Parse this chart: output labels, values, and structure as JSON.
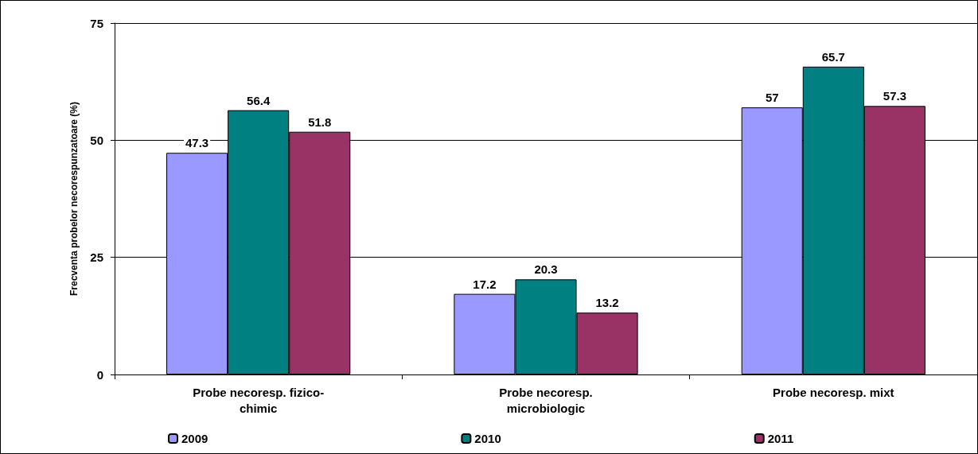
{
  "chart_data": {
    "type": "bar",
    "ylabel": "Frecventa probelor necorespunzatoare (%)",
    "categories": [
      "Probe necoresp. fizico-\nchimic",
      "Probe necoresp.\nmicrobiologic",
      "Probe necoresp. mixt"
    ],
    "series": [
      {
        "name": "2009",
        "color": "#9999ff",
        "values": [
          47.3,
          17.2,
          57
        ]
      },
      {
        "name": "2010",
        "color": "#008080",
        "values": [
          56.4,
          20.3,
          65.7
        ]
      },
      {
        "name": "2011",
        "color": "#993366",
        "values": [
          51.8,
          13.2,
          57.3
        ]
      }
    ],
    "ylim": [
      0,
      75
    ],
    "yticks": [
      0,
      25,
      50,
      75
    ],
    "grid": "y",
    "legend": "bottom",
    "data_labels": true
  }
}
